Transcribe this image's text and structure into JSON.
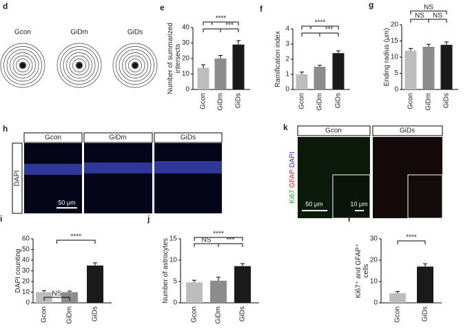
{
  "image_panels": {
    "d": {
      "letter": "d",
      "labels": [
        "Gcon",
        "GiDm",
        "GiDs"
      ]
    },
    "h": {
      "letter": "h",
      "columns": [
        "Gcon",
        "GiDm",
        "GiDs"
      ],
      "stain": "DAPI",
      "scale_bar": "50 μm"
    },
    "k": {
      "letter": "k",
      "columns": [
        "Gcon",
        "GiDs"
      ],
      "stain": [
        "Ki67",
        "GFAP",
        "DAPI"
      ],
      "scale_bars": [
        "50 μm",
        "10 μm"
      ]
    }
  },
  "chart_data": [
    {
      "type": "bar",
      "panel": "e",
      "ylabel": [
        "Number of summarized",
        "intersects"
      ],
      "categories": [
        "Gcon",
        "GiDm",
        "GiDs"
      ],
      "values": [
        14,
        20,
        29
      ],
      "errors": [
        2,
        2,
        2.5
      ],
      "colors": [
        "#bdbdbd",
        "#8c8c8c",
        "#1a1a1a"
      ],
      "ylim": [
        0,
        40
      ],
      "yticks": [
        0,
        10,
        20,
        30,
        40
      ],
      "annotations": [
        "****",
        "*",
        "***"
      ]
    },
    {
      "type": "bar",
      "panel": "f",
      "ylabel": [
        "Ramification index"
      ],
      "categories": [
        "Gcon",
        "GiDm",
        "GiDs"
      ],
      "values": [
        1.0,
        1.5,
        2.4
      ],
      "errors": [
        0.15,
        0.1,
        0.15
      ],
      "colors": [
        "#bdbdbd",
        "#8c8c8c",
        "#1a1a1a"
      ],
      "ylim": [
        0,
        4
      ],
      "yticks": [
        0,
        1,
        2,
        3,
        4
      ],
      "annotations": [
        "****",
        "*",
        "***"
      ]
    },
    {
      "type": "bar",
      "panel": "g",
      "ylabel": [
        "Ending radius (μm)"
      ],
      "categories": [
        "Gcon",
        "GiDm",
        "GiDs"
      ],
      "values": [
        12,
        13.2,
        13.8
      ],
      "errors": [
        0.7,
        0.8,
        0.9
      ],
      "colors": [
        "#bdbdbd",
        "#8c8c8c",
        "#1a1a1a"
      ],
      "ylim": [
        0,
        20
      ],
      "yticks": [
        0,
        5,
        10,
        15,
        20
      ],
      "annotations": [
        "NS",
        "NS",
        "NS"
      ]
    },
    {
      "type": "bar",
      "panel": "i",
      "ylabel": [
        "DAPI counting"
      ],
      "categories": [
        "Gcon",
        "GiDm",
        "GiDs"
      ],
      "values": [
        10,
        10,
        35
      ],
      "errors": [
        1.5,
        1,
        2.5
      ],
      "colors": [
        "#bdbdbd",
        "#8c8c8c",
        "#1a1a1a"
      ],
      "ylim": [
        0,
        60
      ],
      "yticks": [
        0,
        10,
        20,
        30,
        40,
        50,
        60
      ],
      "annotations": [
        "****",
        "NS"
      ]
    },
    {
      "type": "bar",
      "panel": "j",
      "ylabel": [
        "Number of astrocytes"
      ],
      "categories": [
        "Gcon",
        "GiDm",
        "GiDs"
      ],
      "values": [
        4.8,
        5.2,
        8.6
      ],
      "errors": [
        0.5,
        0.8,
        0.6
      ],
      "colors": [
        "#bdbdbd",
        "#8c8c8c",
        "#1a1a1a"
      ],
      "ylim": [
        0,
        15
      ],
      "yticks": [
        0,
        5,
        10,
        15
      ],
      "annotations": [
        "****",
        "NS",
        "***"
      ]
    },
    {
      "type": "bar",
      "panel": "l",
      "ylabel": [
        "Ki67⁺ and GFAP⁺",
        "cells"
      ],
      "categories": [
        "Gcon",
        "GiDs"
      ],
      "values": [
        4.5,
        17
      ],
      "errors": [
        0.8,
        1.3
      ],
      "colors": [
        "#bdbdbd",
        "#1a1a1a"
      ],
      "ylim": [
        0,
        30
      ],
      "yticks": [
        0,
        10,
        20,
        30
      ],
      "annotations": [
        "****"
      ]
    }
  ]
}
